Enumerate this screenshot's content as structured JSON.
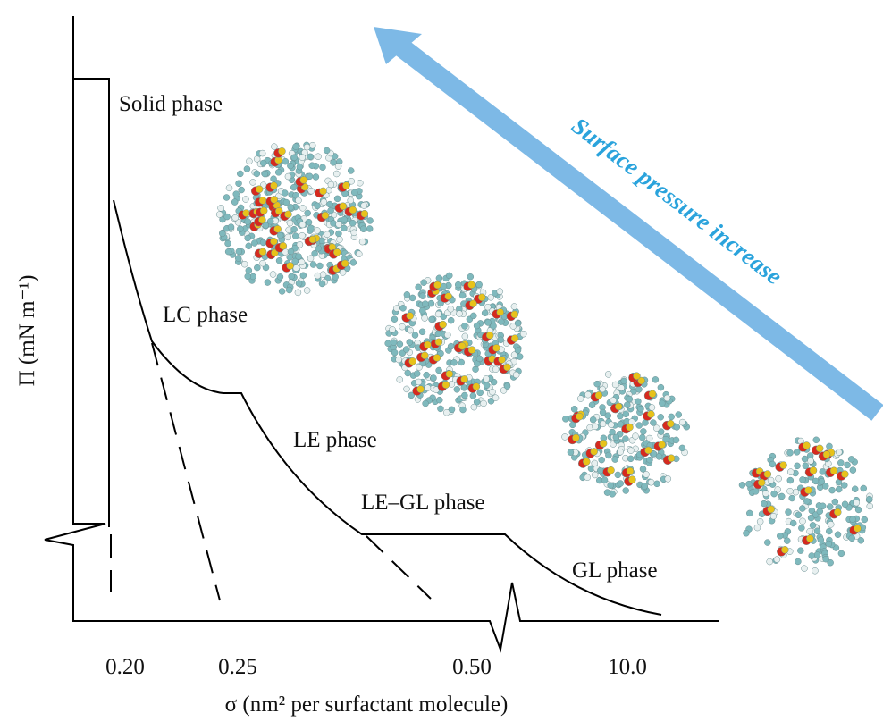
{
  "axes": {
    "y_label": "Π (mN m⁻¹)",
    "x_label": "σ (nm² per surfactant molecule)",
    "x_tick_labels": [
      "0.20",
      "0.25",
      "0.50",
      "10.0"
    ]
  },
  "phases": [
    "Solid phase",
    "LC phase",
    "LE phase",
    "LE–GL phase",
    "GL phase"
  ],
  "arrow": {
    "label": "Surface pressure increase"
  }
}
